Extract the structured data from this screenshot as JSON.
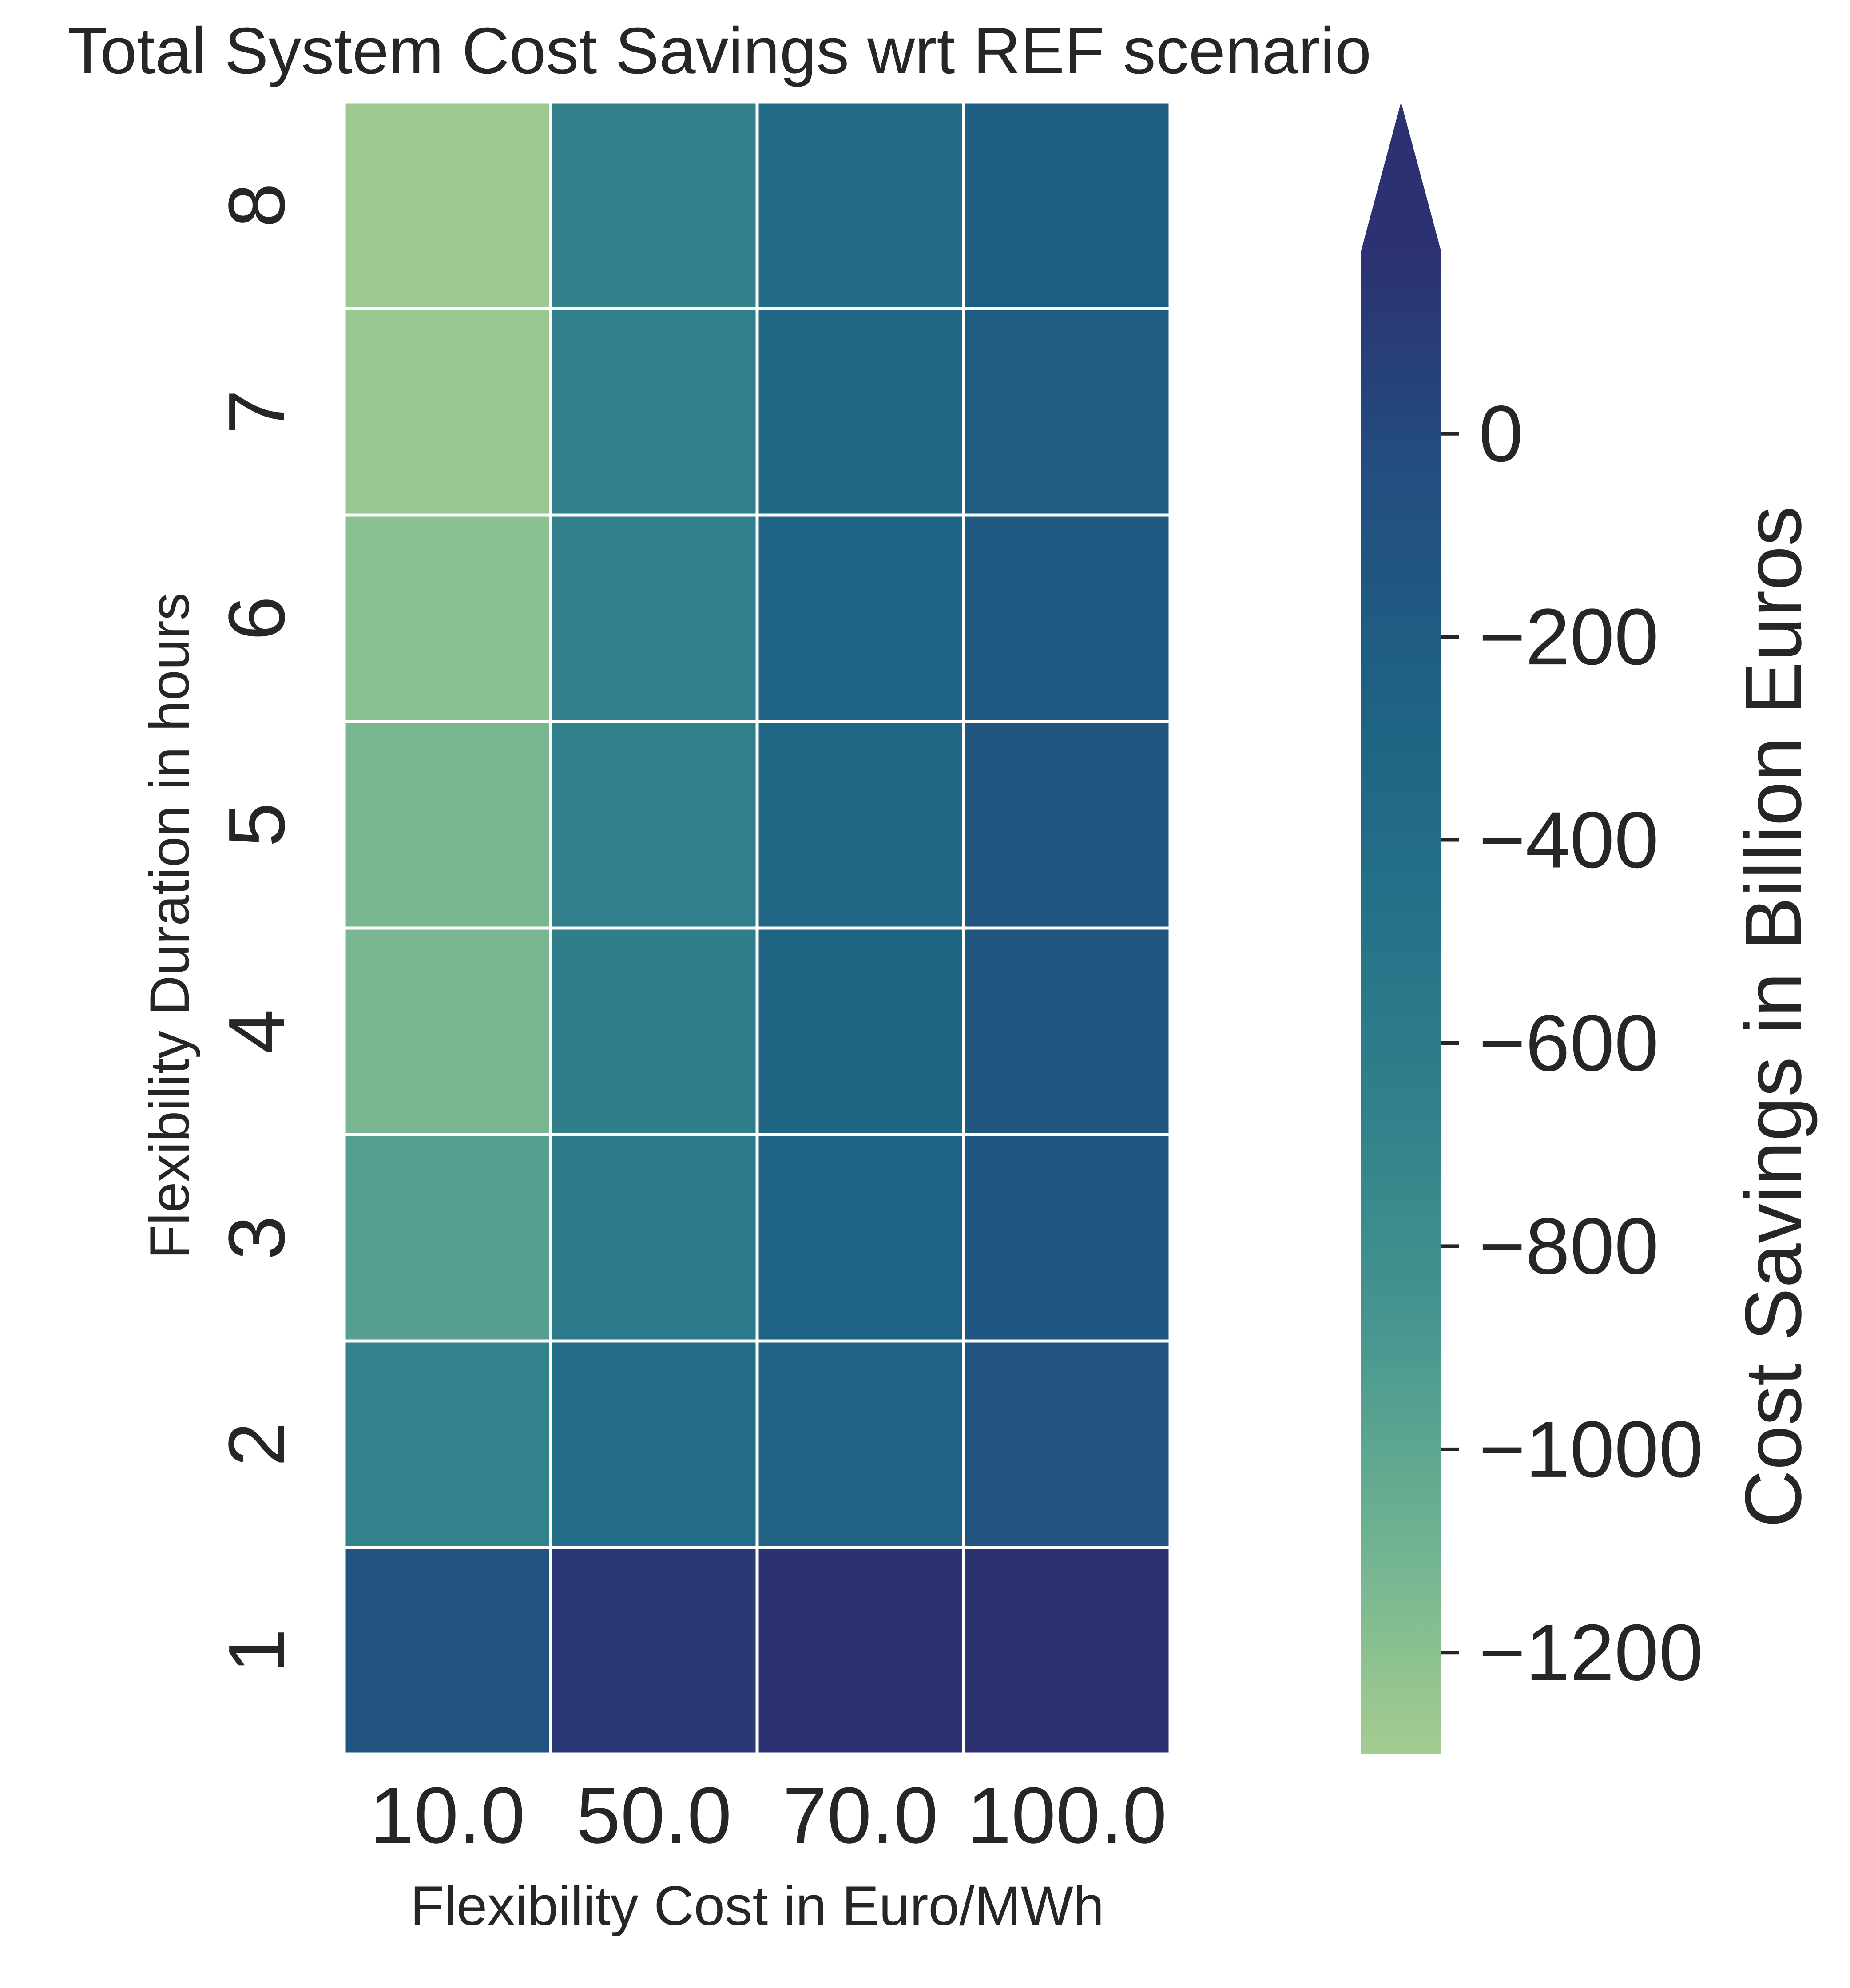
{
  "chart_data": {
    "type": "heatmap",
    "title": "Total System Cost Savings wrt REF scenario",
    "xlabel": "Flexibility Cost in Euro/MWh",
    "ylabel": "Flexibility Duration in hours",
    "x_categories": [
      "10.0",
      "50.0",
      "70.0",
      "100.0"
    ],
    "y_categories": [
      "8",
      "7",
      "6",
      "5",
      "4",
      "3",
      "2",
      "1"
    ],
    "values": [
      [
        -1270,
        -670,
        -380,
        -220
      ],
      [
        -1250,
        -650,
        -320,
        -200
      ],
      [
        -1200,
        -650,
        -310,
        -170
      ],
      [
        -1130,
        -650,
        -320,
        -130
      ],
      [
        -1130,
        -640,
        -300,
        -130
      ],
      [
        -950,
        -570,
        -280,
        -140
      ],
      [
        -680,
        -400,
        -270,
        -100
      ],
      [
        -100,
        120,
        190,
        190
      ]
    ],
    "colorbar": {
      "label": "Cost Savings in Billion Euros",
      "vmin": -1300,
      "vmax": 180,
      "ticks": [
        0,
        -200,
        -400,
        -600,
        -800,
        -1000,
        -1200
      ],
      "tick_labels": [
        "0",
        "−200",
        "−400",
        "−600",
        "−800",
        "−1000",
        "−1200"
      ],
      "extend": "max",
      "colormap": "crest",
      "stops": [
        "#a5cd90",
        "#6eb291",
        "#46958f",
        "#31808b",
        "#247088",
        "#1e6083",
        "#234d80",
        "#2c3172"
      ]
    },
    "grid_line_color": "#ffffff"
  }
}
